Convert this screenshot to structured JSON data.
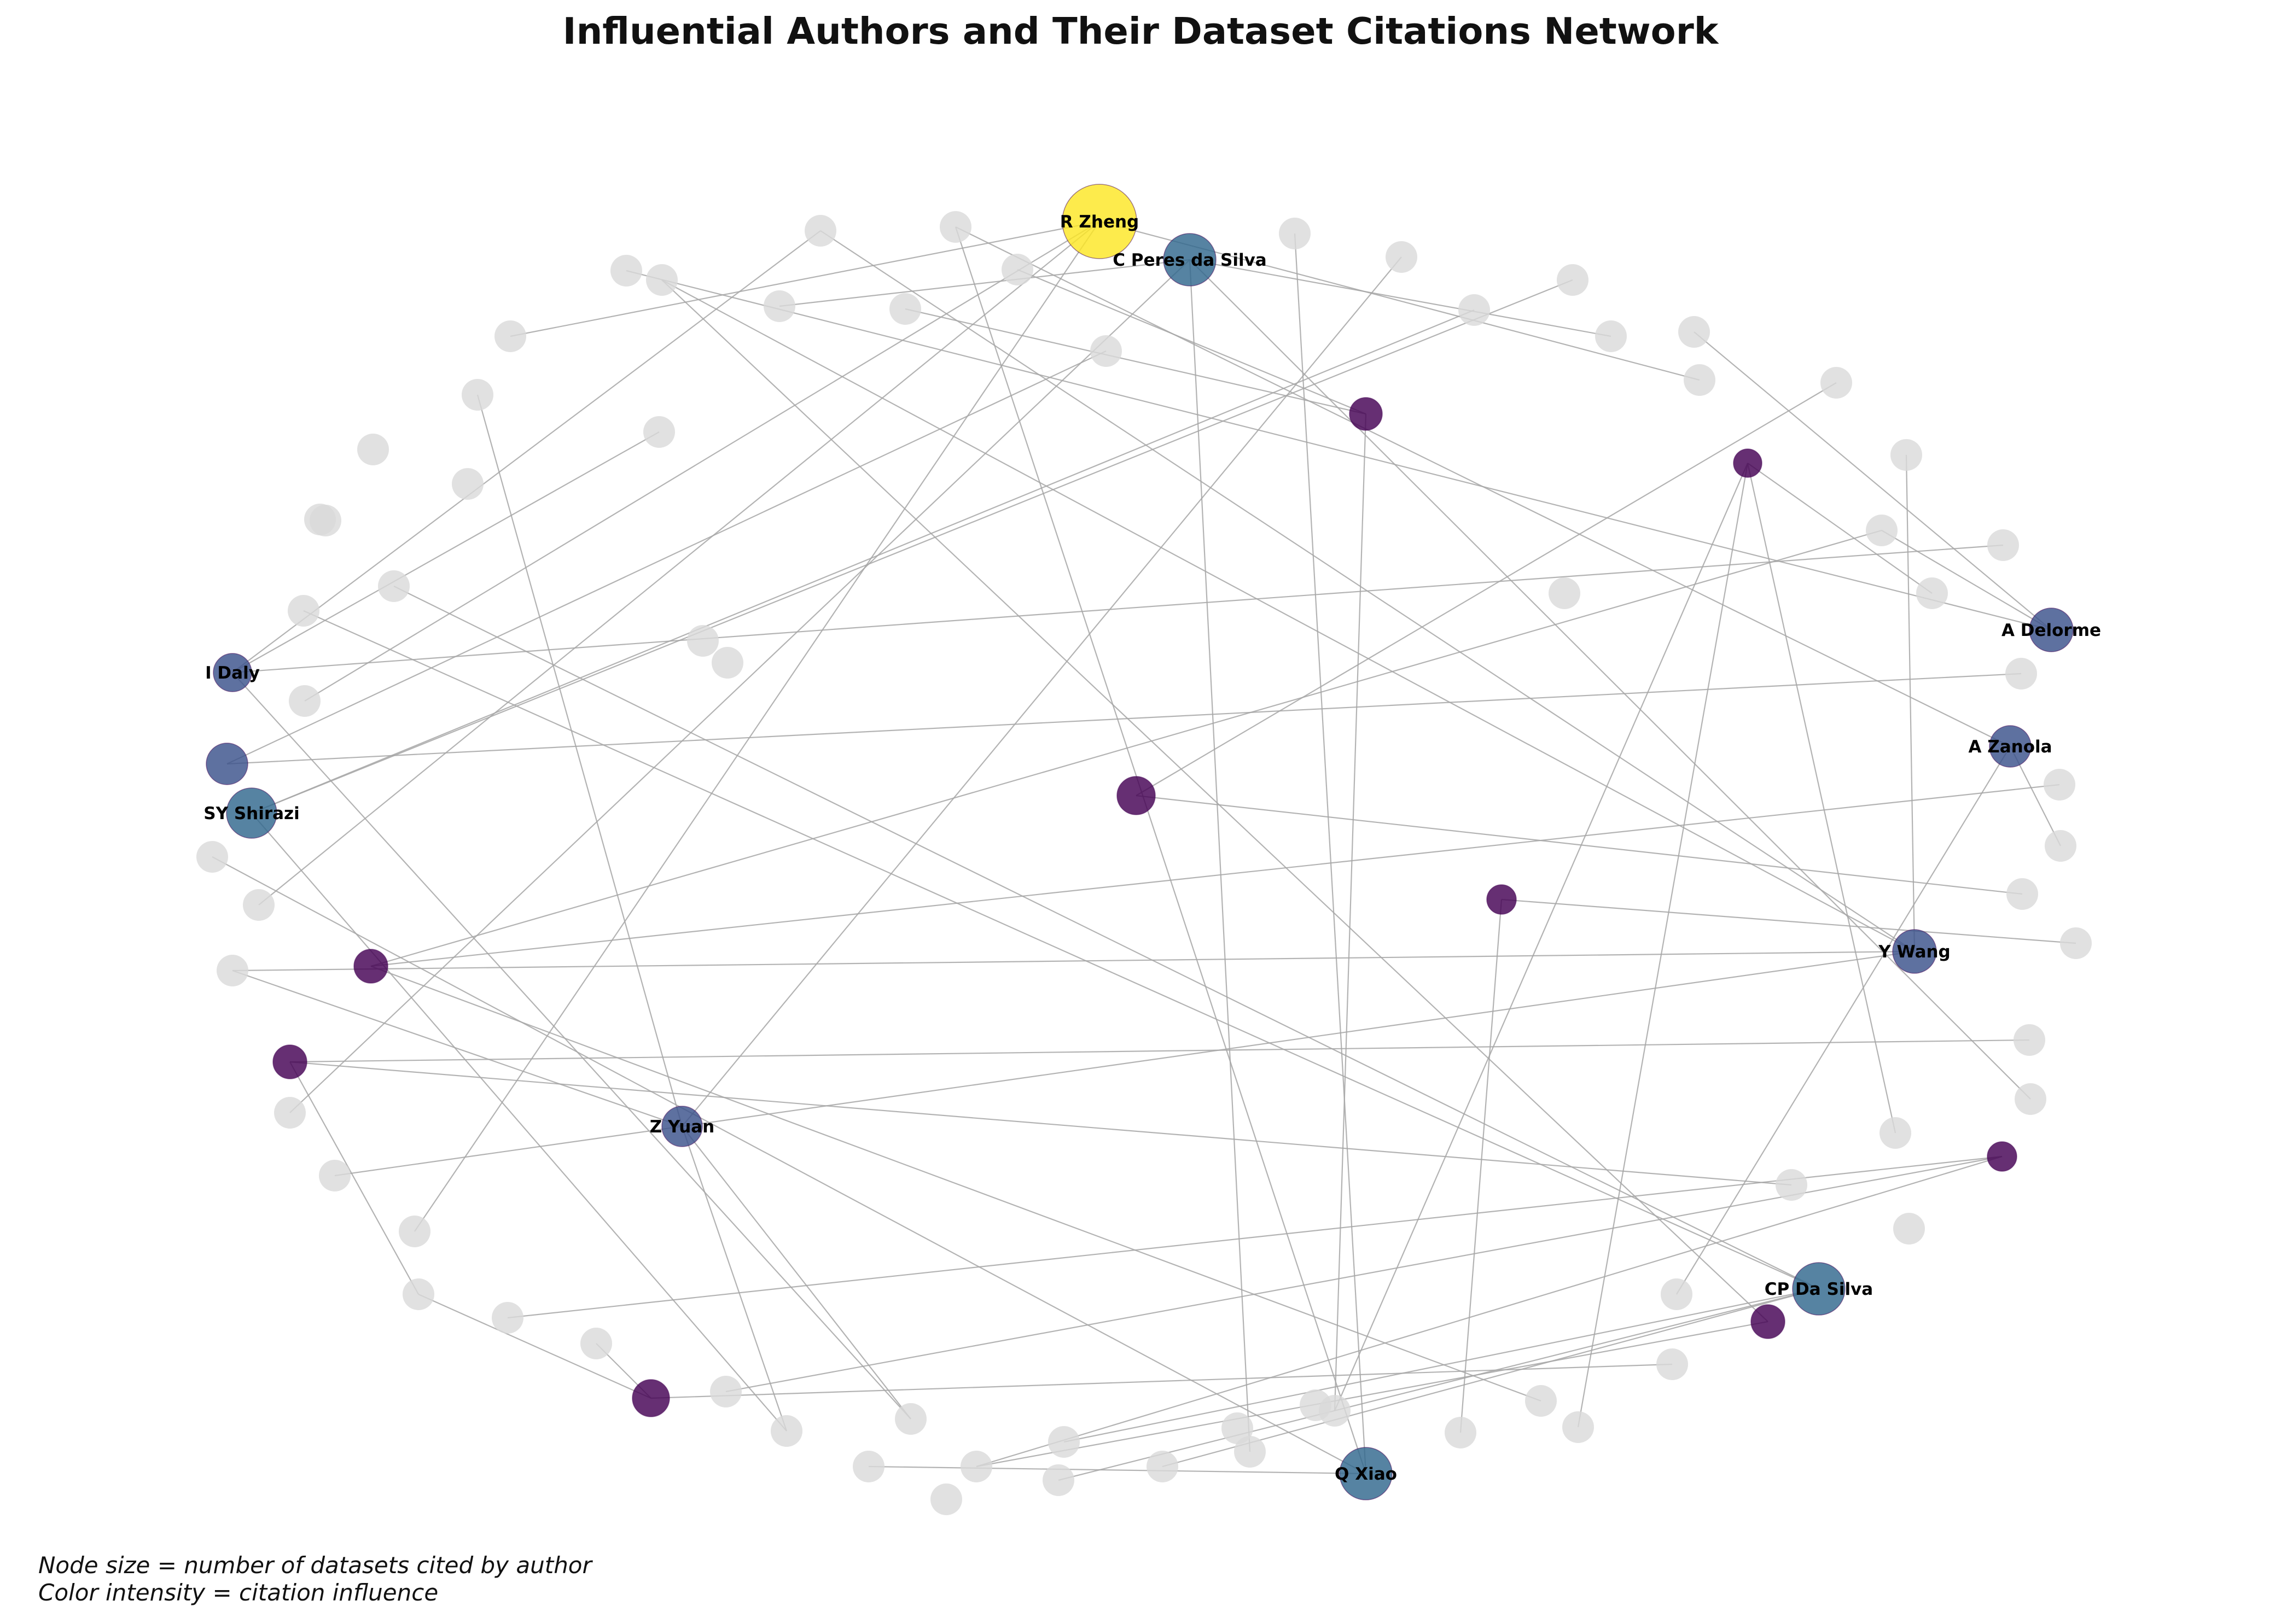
{
  "title": "Influential Authors and Their Dataset Citations Network",
  "caption": {
    "line1": "Node size = number of datasets cited by author",
    "line2": "Color intensity = citation influence"
  },
  "colors": {
    "dataset_node": "#d9d9d9",
    "edge": "#a6a6a6",
    "label": "#000000",
    "influence_levels": [
      "#440154",
      "#3b528b",
      "#31688e",
      "#fde725"
    ]
  },
  "authors": [
    {
      "id": "a_zheng",
      "label": "R Zheng",
      "influence": 3
    },
    {
      "id": "a_cperes",
      "label": "C Peres da Silva",
      "influence": 2
    },
    {
      "id": "a_delorme",
      "label": "A Delorme",
      "influence": 1
    },
    {
      "id": "a_zanola",
      "label": "A Zanola",
      "influence": 1
    },
    {
      "id": "a_ywang",
      "label": "Y Wang",
      "influence": 1
    },
    {
      "id": "a_cpda",
      "label": "CP Da Silva",
      "influence": 2
    },
    {
      "id": "a_qxiao",
      "label": "Q Xiao",
      "influence": 2
    },
    {
      "id": "a_zyuan",
      "label": "Z Yuan",
      "influence": 1
    },
    {
      "id": "a_shirazi",
      "label": "SY Shirazi",
      "influence": 2
    },
    {
      "id": "a_daly",
      "label": "I Daly",
      "influence": 1
    },
    {
      "id": "a_u1",
      "label": "",
      "influence": 1
    },
    {
      "id": "a_u2",
      "label": "",
      "influence": 0
    },
    {
      "id": "a_u3",
      "label": "",
      "influence": 0
    },
    {
      "id": "a_u4",
      "label": "",
      "influence": 0
    },
    {
      "id": "a_u5",
      "label": "",
      "influence": 0
    },
    {
      "id": "a_u6",
      "label": "",
      "influence": 0
    },
    {
      "id": "a_u7",
      "label": "",
      "influence": 0
    },
    {
      "id": "a_u8",
      "label": "",
      "influence": 0
    },
    {
      "id": "a_u9",
      "label": "",
      "influence": 0
    },
    {
      "id": "a_u10",
      "label": "",
      "influence": 0
    }
  ],
  "edges": [
    [
      "a_zheng",
      "d1"
    ],
    [
      "a_zheng",
      "d18"
    ],
    [
      "a_zheng",
      "d52"
    ],
    [
      "a_zheng",
      "d56"
    ],
    [
      "a_cperes",
      "d7"
    ],
    [
      "a_cperes",
      "d16"
    ],
    [
      "a_cperes",
      "d30"
    ],
    [
      "a_cperes",
      "d40"
    ],
    [
      "a_cperes",
      "d54"
    ],
    [
      "a_delorme",
      "d2"
    ],
    [
      "a_delorme",
      "d21"
    ],
    [
      "a_delorme",
      "d17"
    ],
    [
      "a_zanola",
      "d5"
    ],
    [
      "a_zanola",
      "d26"
    ],
    [
      "a_zanola",
      "d34"
    ],
    [
      "a_ywang",
      "d3"
    ],
    [
      "a_ywang",
      "d4"
    ],
    [
      "a_ywang",
      "d20"
    ],
    [
      "a_ywang",
      "d53"
    ],
    [
      "a_ywang",
      "d55"
    ],
    [
      "a_cpda",
      "d41"
    ],
    [
      "a_cpda",
      "d42"
    ],
    [
      "a_cpda",
      "d43"
    ],
    [
      "a_cpda",
      "d59"
    ],
    [
      "a_qxiao",
      "d5"
    ],
    [
      "a_qxiao",
      "d12"
    ],
    [
      "a_qxiao",
      "d45"
    ],
    [
      "a_zyuan",
      "d11"
    ],
    [
      "a_zyuan",
      "d13"
    ],
    [
      "a_zyuan",
      "d46"
    ],
    [
      "a_zyuan",
      "d47"
    ],
    [
      "a_zyuan",
      "d55"
    ],
    [
      "a_shirazi",
      "d14"
    ],
    [
      "a_shirazi",
      "d15"
    ],
    [
      "a_shirazi",
      "d47"
    ],
    [
      "a_daly",
      "d4"
    ],
    [
      "a_daly",
      "d23"
    ],
    [
      "a_daly",
      "d10"
    ],
    [
      "a_daly",
      "d46"
    ],
    [
      "a_u1",
      "d9"
    ],
    [
      "a_u1",
      "d24"
    ],
    [
      "a_u2",
      "d6"
    ],
    [
      "a_u2",
      "d8"
    ],
    [
      "a_u2",
      "d39"
    ],
    [
      "a_u3",
      "d22"
    ],
    [
      "a_u3",
      "d31"
    ],
    [
      "a_u3",
      "d39"
    ],
    [
      "a_u4",
      "d19"
    ],
    [
      "a_u4",
      "d27"
    ],
    [
      "a_u5",
      "d28"
    ],
    [
      "a_u5",
      "d38"
    ],
    [
      "a_u6",
      "d21"
    ],
    [
      "a_u6",
      "d25"
    ],
    [
      "a_u6",
      "d37"
    ],
    [
      "a_u7",
      "d29"
    ],
    [
      "a_u7",
      "d51"
    ],
    [
      "a_u8",
      "d44"
    ],
    [
      "a_u8",
      "d48"
    ],
    [
      "a_u8",
      "d50"
    ],
    [
      "a_u9",
      "d3"
    ],
    [
      "a_u9",
      "d44"
    ],
    [
      "a_u10",
      "d35"
    ],
    [
      "a_u10",
      "d49"
    ],
    [
      "a_u10",
      "d51"
    ],
    [
      "a_u7",
      "d33"
    ],
    [
      "a_u3",
      "d36"
    ],
    [
      "a_zheng",
      "d58"
    ],
    [
      "a_cpda",
      "d60"
    ],
    [
      "a_qxiao",
      "d57"
    ]
  ]
}
